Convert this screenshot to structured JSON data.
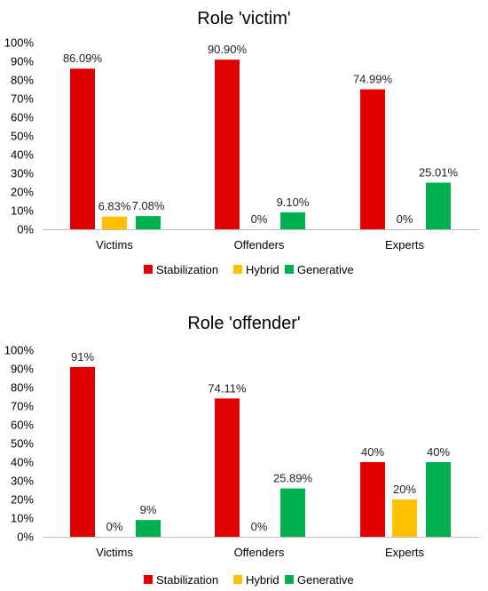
{
  "chart_data": [
    {
      "type": "bar",
      "title": "Role 'victim'",
      "xlabel": "",
      "ylabel": "",
      "categories": [
        "Victims",
        "Offenders",
        "Experts"
      ],
      "ylim": [
        0,
        100
      ],
      "yticks": [
        0,
        10,
        20,
        30,
        40,
        50,
        60,
        70,
        80,
        90,
        100
      ],
      "ytick_labels": [
        "0%",
        "10%",
        "20%",
        "30%",
        "40%",
        "50%",
        "60%",
        "70%",
        "80%",
        "90%",
        "100%"
      ],
      "grid": false,
      "legend_position": "bottom",
      "series": [
        {
          "name": "Stabilization",
          "color": "#e00000",
          "values": [
            86.09,
            90.9,
            74.99
          ],
          "labels": [
            "86.09%",
            "90.90%",
            "74.99%"
          ]
        },
        {
          "name": "Hybrid",
          "color": "#ffc000",
          "values": [
            6.83,
            0,
            0
          ],
          "labels": [
            "6.83%",
            "0%",
            "0%"
          ]
        },
        {
          "name": "Generative",
          "color": "#00b050",
          "values": [
            7.08,
            9.1,
            25.01
          ],
          "labels": [
            "7.08%",
            "9.10%",
            "25.01%"
          ]
        }
      ]
    },
    {
      "type": "bar",
      "title": "Role 'offender'",
      "xlabel": "",
      "ylabel": "",
      "categories": [
        "Victims",
        "Offenders",
        "Experts"
      ],
      "ylim": [
        0,
        100
      ],
      "yticks": [
        0,
        10,
        20,
        30,
        40,
        50,
        60,
        70,
        80,
        90,
        100
      ],
      "ytick_labels": [
        "0%",
        "10%",
        "20%",
        "30%",
        "40%",
        "50%",
        "60%",
        "70%",
        "80%",
        "90%",
        "100%"
      ],
      "grid": false,
      "legend_position": "bottom",
      "series": [
        {
          "name": "Stabilization",
          "color": "#e00000",
          "values": [
            91,
            74.11,
            40
          ],
          "labels": [
            "91%",
            "74.11%",
            "40%"
          ]
        },
        {
          "name": "Hybrid",
          "color": "#ffc000",
          "values": [
            0,
            0,
            20
          ],
          "labels": [
            "0%",
            "0%",
            "20%"
          ]
        },
        {
          "name": "Generative",
          "color": "#00b050",
          "values": [
            9,
            25.89,
            40
          ],
          "labels": [
            "9%",
            "25.89%",
            "40%"
          ]
        }
      ]
    }
  ]
}
